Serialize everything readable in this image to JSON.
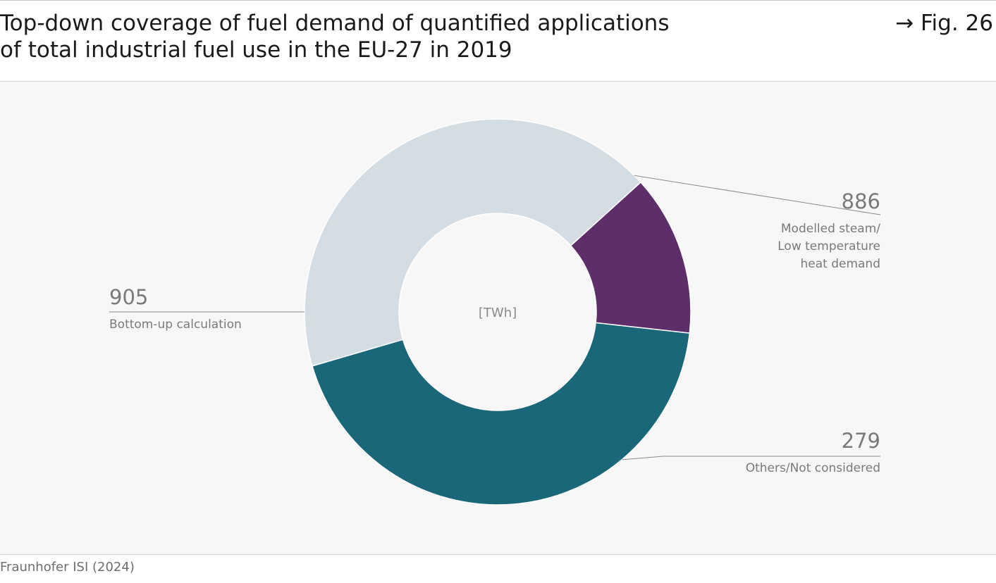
{
  "figure": {
    "title_line1": "Top-down coverage of fuel demand of quantified applications",
    "title_line2": "of total industrial fuel use in the EU-27 in 2019",
    "fig_label": "→ Fig. 26",
    "source": "Fraunhofer ISI (2024)"
  },
  "chart_data": {
    "type": "pie",
    "center_label": "[TWh]",
    "slices": [
      {
        "value": 886,
        "label_lines": [
          "Modelled steam/",
          "Low temperature",
          "heat demand"
        ],
        "color": "#d3dde3",
        "value_text": "886"
      },
      {
        "value": 279,
        "label_lines": [
          "Others/Not considered"
        ],
        "color": "#5e2e6b",
        "value_text": "279"
      },
      {
        "value": 905,
        "label_lines": [
          "Bottom-up calculation"
        ],
        "color": "#1b677a",
        "value_text": "905"
      }
    ],
    "colors": {
      "value_text": "#7a7a7a",
      "label_text": "#7a7a7a",
      "leader": "#8a8a8a",
      "center_text": "#8a8a8a"
    }
  }
}
